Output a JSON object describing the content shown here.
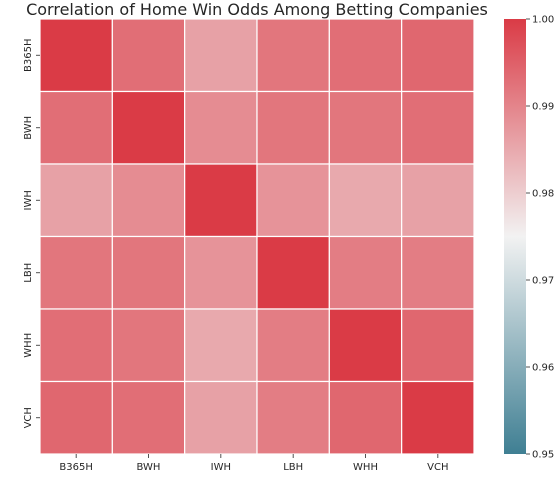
{
  "chart_data": {
    "type": "heatmap",
    "title": "Correlation of Home Win Odds Among Betting Companies",
    "xlabel": "",
    "ylabel": "",
    "x_categories": [
      "B365H",
      "BWH",
      "IWH",
      "LBH",
      "WHH",
      "VCH"
    ],
    "y_categories": [
      "B365H",
      "BWH",
      "IWH",
      "LBH",
      "WHH",
      "VCH"
    ],
    "values": [
      [
        1.0,
        0.993,
        0.986,
        0.992,
        0.993,
        0.994
      ],
      [
        0.993,
        1.0,
        0.989,
        0.992,
        0.992,
        0.993
      ],
      [
        0.986,
        0.989,
        1.0,
        0.988,
        0.985,
        0.986
      ],
      [
        0.992,
        0.992,
        0.988,
        1.0,
        0.991,
        0.991
      ],
      [
        0.993,
        0.992,
        0.985,
        0.991,
        1.0,
        0.994
      ],
      [
        0.994,
        0.993,
        0.986,
        0.991,
        0.994,
        1.0
      ]
    ],
    "colorbar": {
      "min": 0.95,
      "max": 1.0,
      "ticks": [
        "0.95",
        "0.96",
        "0.97",
        "0.98",
        "0.99",
        "1.00"
      ],
      "low_color": "#3f7f93",
      "mid_color": "#f2f2f2",
      "high_color": "#da3b46"
    },
    "grid_line_color": "#ffffff"
  }
}
